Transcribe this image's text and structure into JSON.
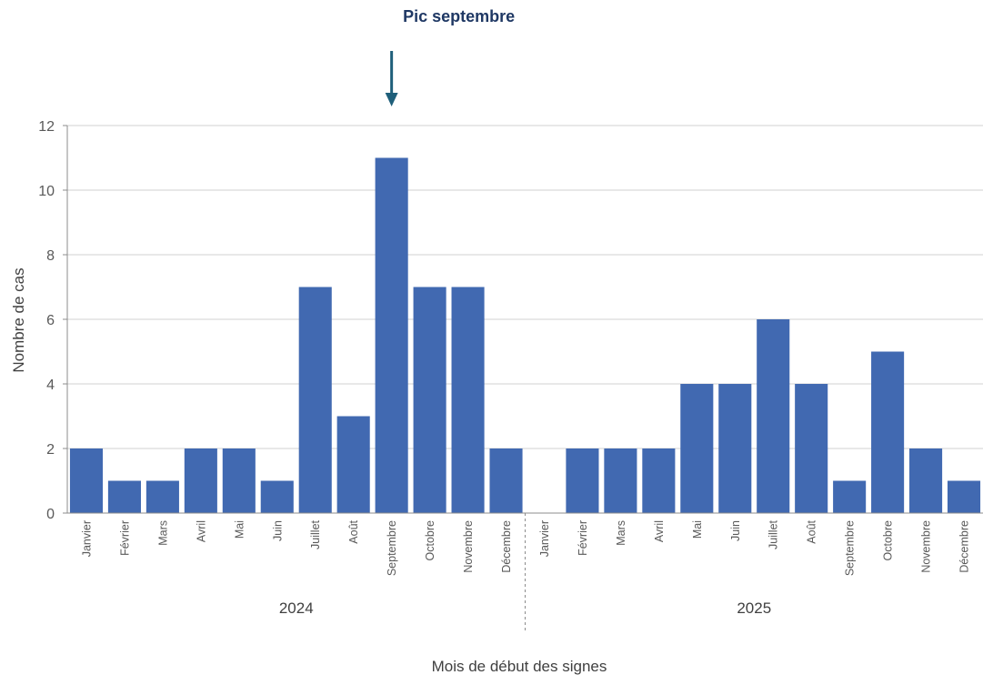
{
  "chart_data": {
    "type": "bar",
    "ylabel": "Nombre de cas",
    "xlabel": "Mois de début des signes",
    "ylim": [
      0,
      12
    ],
    "yticks": [
      0,
      2,
      4,
      6,
      8,
      10,
      12
    ],
    "grid": true,
    "bar_color": "#4169b1",
    "groups": [
      {
        "year": "2024",
        "categories": [
          "Janvier",
          "Février",
          "Mars",
          "Avril",
          "Mai",
          "Juin",
          "Juillet",
          "Août",
          "Septembre",
          "Octobre",
          "Novembre",
          "Décembre"
        ],
        "values": [
          2,
          1,
          1,
          2,
          2,
          1,
          7,
          3,
          11,
          7,
          7,
          2
        ]
      },
      {
        "year": "2025",
        "categories": [
          "Janvier",
          "Février",
          "Mars",
          "Avril",
          "Mai",
          "Juin",
          "Juillet",
          "Août",
          "Septembre",
          "Octobre",
          "Novembre",
          "Décembre"
        ],
        "values": [
          0,
          2,
          2,
          2,
          4,
          4,
          6,
          4,
          1,
          5,
          2,
          1
        ]
      }
    ],
    "annotation": {
      "text": "Pic septembre",
      "target_year": "2024",
      "target_category": "Septembre",
      "color": "#1f5f7a"
    }
  }
}
